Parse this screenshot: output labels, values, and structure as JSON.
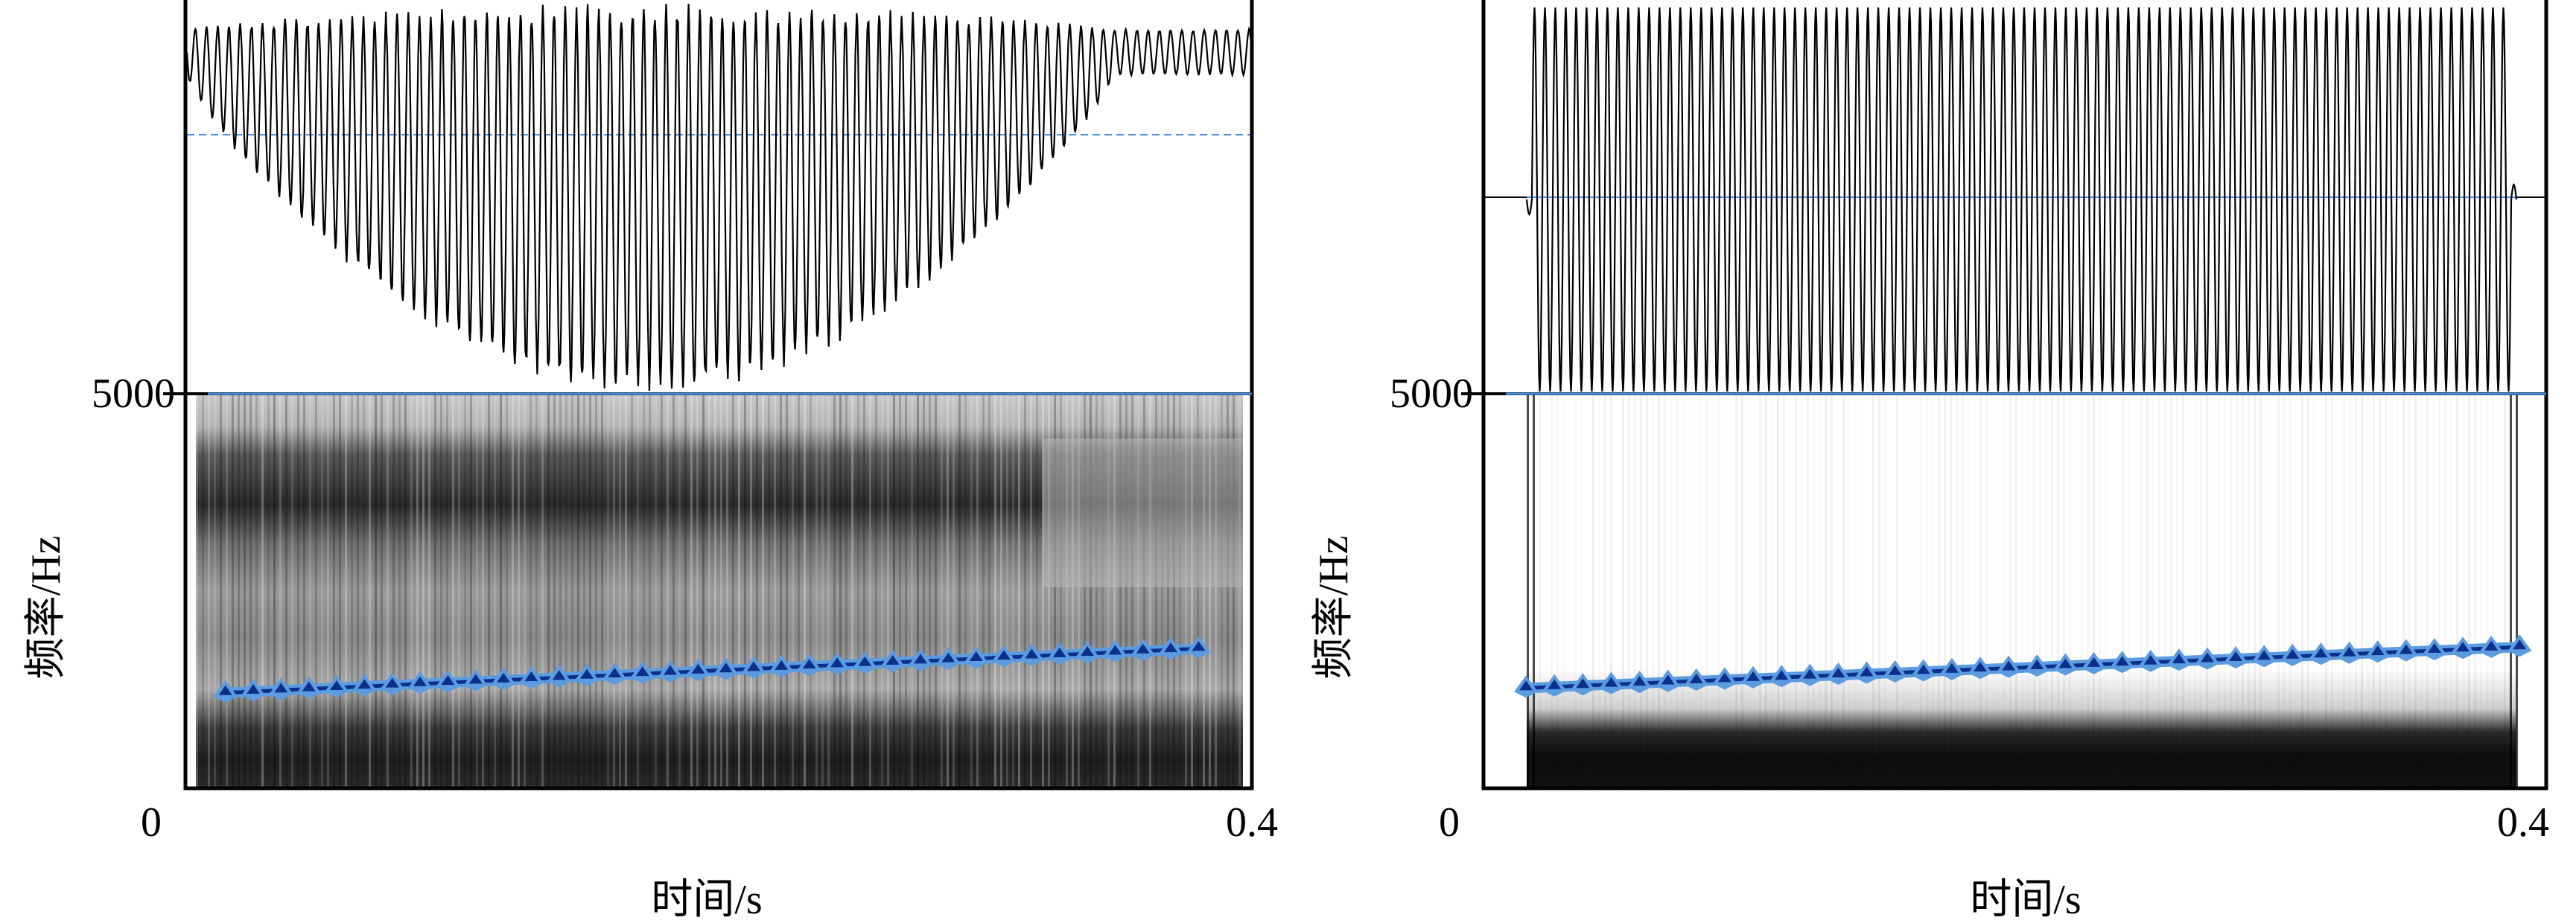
{
  "colors": {
    "pitch_line": "#0b2f8a",
    "pitch_marker_halo": "#5b9be0",
    "baseline": "#4a8fe0"
  },
  "chart_data": [
    {
      "type": "line",
      "title": "",
      "panel": "left",
      "description_of_marks": "waveform (top) + spectrogram with pitch track (bottom)",
      "xlabel": "时间/s",
      "ylabel": "频率/Hz",
      "xlim": [
        0,
        0.4
      ],
      "ylim": [
        0,
        5000
      ],
      "x_ticks": [
        "0",
        "0.4"
      ],
      "y_ticks": [
        "5000"
      ],
      "pitch_track": {
        "x_start": 0.015,
        "x_end": 0.38,
        "y_start": 1210,
        "y_end": 1770,
        "points": 36
      },
      "waveform": {
        "cycles": 95,
        "envelope": "rising then falling"
      }
    },
    {
      "type": "line",
      "title": "",
      "panel": "right",
      "description_of_marks": "waveform (top) + spectrogram with pitch track (bottom)",
      "xlabel": "时间/s",
      "ylabel": "频率/Hz",
      "xlim": [
        0,
        0.4
      ],
      "ylim": [
        0,
        5000
      ],
      "x_ticks": [
        "0",
        "0.4"
      ],
      "y_ticks": [
        "5000"
      ],
      "pitch_track": {
        "x_start": 0.016,
        "x_end": 0.39,
        "y_start": 1270,
        "y_end": 1790,
        "points": 36
      },
      "waveform": {
        "cycles": 95,
        "envelope": "constant"
      }
    }
  ]
}
